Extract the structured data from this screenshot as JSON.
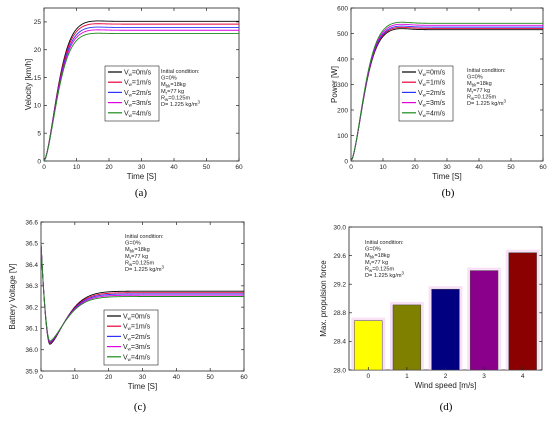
{
  "chart_data": [
    {
      "panel_label": "(a)",
      "type": "line",
      "xlabel": "Time [S]",
      "ylabel": "Velocity [km/h]",
      "xlim": [
        0,
        60
      ],
      "ylim": [
        0,
        27.5
      ],
      "xticks": [
        0,
        10,
        20,
        30,
        40,
        50,
        60
      ],
      "yticks": [
        0,
        5,
        10,
        15,
        20,
        25
      ],
      "legend_position": "center-right",
      "series": [
        {
          "name": "0m/s",
          "steady": 25.1
        },
        {
          "name": "1m/s",
          "steady": 24.6
        },
        {
          "name": "2m/s",
          "steady": 24.0
        },
        {
          "name": "3m/s",
          "steady": 23.5
        },
        {
          "name": "4m/s",
          "steady": 22.9
        }
      ]
    },
    {
      "panel_label": "(b)",
      "type": "line",
      "xlabel": "Time [S]",
      "ylabel": "Power [W]",
      "xlim": [
        0,
        60
      ],
      "ylim": [
        0,
        600
      ],
      "xticks": [
        0,
        10,
        20,
        30,
        40,
        50,
        60
      ],
      "yticks": [
        0,
        100,
        200,
        300,
        400,
        500,
        600
      ],
      "legend_position": "center-right",
      "series": [
        {
          "name": "0m/s",
          "steady": 515
        },
        {
          "name": "1m/s",
          "steady": 520
        },
        {
          "name": "2m/s",
          "steady": 525
        },
        {
          "name": "3m/s",
          "steady": 532
        },
        {
          "name": "4m/s",
          "steady": 540
        }
      ]
    },
    {
      "panel_label": "(c)",
      "type": "line",
      "xlabel": "Time [S]",
      "ylabel": "Battery Voltage [V]",
      "xlim": [
        0,
        60
      ],
      "ylim": [
        35.9,
        36.6
      ],
      "xticks": [
        0,
        10,
        20,
        30,
        40,
        50,
        60
      ],
      "yticks": [
        "35.9",
        "36.0",
        "36.1",
        "36.2",
        "36.3",
        "36.4",
        "36.5",
        "36.6"
      ],
      "legend_position": "bottom-right",
      "series": [
        {
          "name": "0m/s",
          "start": 36.5,
          "min": 36.025,
          "steady": 36.275
        },
        {
          "name": "1m/s",
          "start": 36.5,
          "min": 36.03,
          "steady": 36.268
        },
        {
          "name": "2m/s",
          "start": 36.5,
          "min": 36.033,
          "steady": 36.262
        },
        {
          "name": "3m/s",
          "start": 36.5,
          "min": 36.036,
          "steady": 36.256
        },
        {
          "name": "4m/s",
          "start": 36.5,
          "min": 36.04,
          "steady": 36.25
        }
      ]
    },
    {
      "panel_label": "(d)",
      "type": "bar",
      "xlabel": "Wind speed [m/s]",
      "ylabel": "Max. propulsion force",
      "ylim": [
        28.0,
        30.0
      ],
      "yticks": [
        "28.0",
        "28.4",
        "28.8",
        "29.2",
        "29.6",
        "30.0"
      ],
      "categories": [
        "0",
        "1",
        "2",
        "3",
        "4"
      ],
      "values": [
        28.69,
        28.91,
        29.13,
        29.39,
        29.64
      ]
    }
  ],
  "common": {
    "legend_prefix": "V",
    "legend_sub": "w",
    "legend_eq": "=",
    "condition": {
      "line1": "Initial condition:",
      "line2": "G=0%",
      "m_bike_label": "M",
      "m_bike_sub": "bk",
      "m_bike_val": "=18kg",
      "m_rider_label": "M",
      "m_rider_sub": "r",
      "m_rider_val": "=77 kg",
      "r_label": "R",
      "r_sub": "w",
      "r_val": "=0.125m",
      "rho_text": "D= 1.225 kg/m",
      "rho_sup": "3"
    }
  },
  "colors": {
    "series": [
      "#000000",
      "#e8003a",
      "#2b33ff",
      "#e000e0",
      "#1a8a1a"
    ],
    "bars": [
      "#ffff00",
      "#808000",
      "#000080",
      "#8b008b",
      "#8b0000"
    ],
    "bar_glow": "#f2c8f0"
  }
}
